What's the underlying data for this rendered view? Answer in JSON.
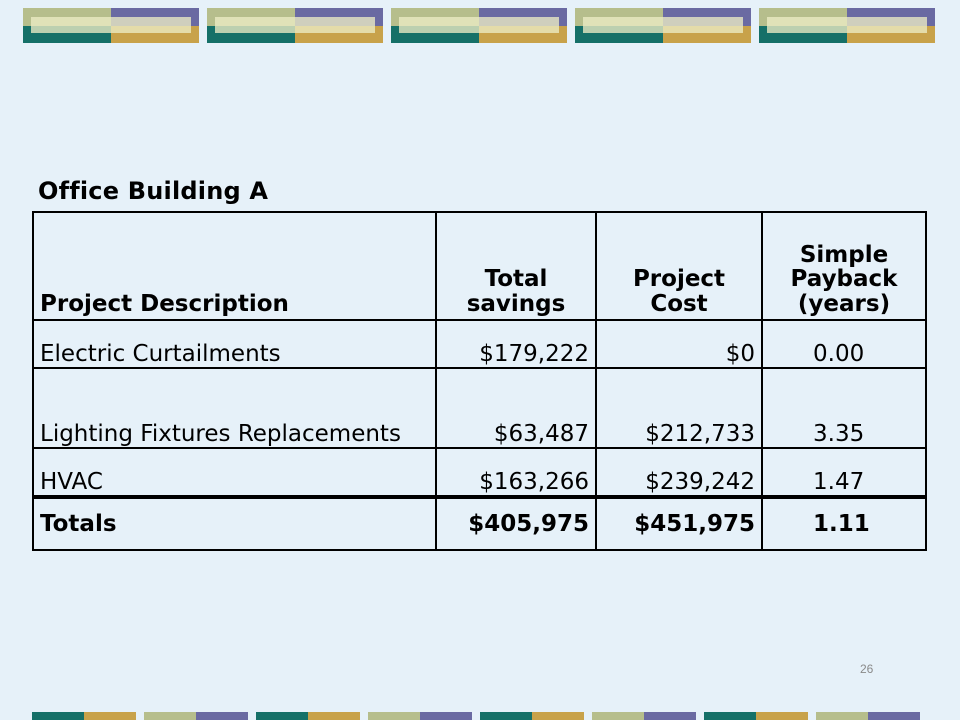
{
  "title": "Office Building A",
  "table": {
    "headers": {
      "description": "Project Description",
      "savings": "Total savings",
      "cost": "Project Cost",
      "payback": "Simple Payback (years)"
    },
    "rows": [
      {
        "description": "Electric Curtailments",
        "savings": "$179,222",
        "cost": "$0",
        "payback": "0.00"
      },
      {
        "description": "Lighting Fixtures Replacements",
        "savings": "$63,487",
        "cost": "$212,733",
        "payback": "3.35"
      },
      {
        "description": "HVAC",
        "savings": "$163,266",
        "cost": "$239,242",
        "payback": "1.47"
      }
    ],
    "totals": {
      "label": "Totals",
      "savings": "$405,975",
      "cost": "$451,975",
      "payback": "1.11"
    }
  },
  "page_number": "26",
  "colors": {
    "background": "#e6f1f9",
    "teal": "#157068",
    "gold": "#c8a24a",
    "olive": "#b6be8c",
    "purple": "#6a6aa2"
  }
}
